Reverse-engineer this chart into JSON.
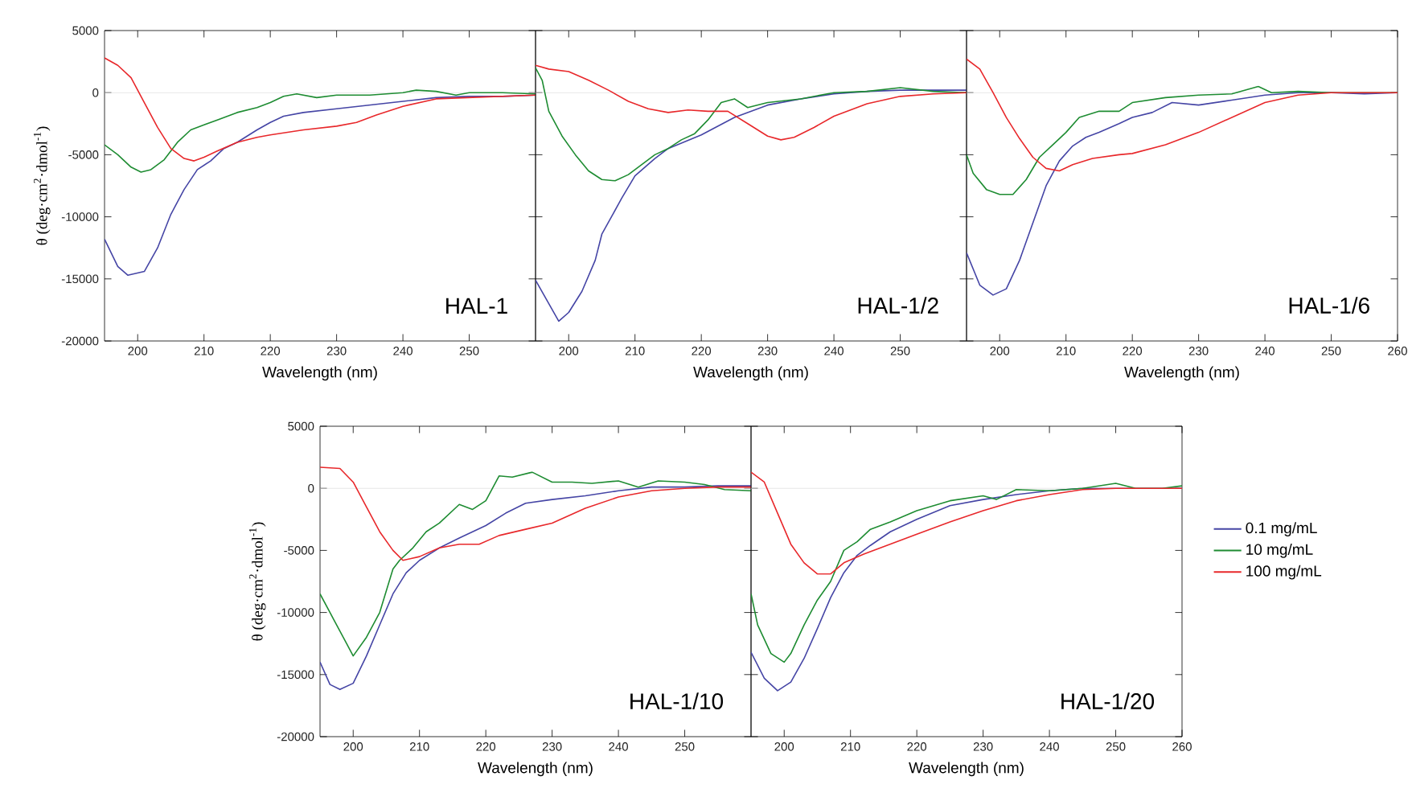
{
  "chart_data": [
    {
      "type": "line",
      "xlabel": "Wavelength (nm)",
      "ylabel": "θ (deg·cm$^{2}$·dmol$^{-1}$)",
      "annotations": [
        "HAL-1"
      ],
      "xlim": [
        195,
        260
      ],
      "xticks": [
        200,
        210,
        220,
        230,
        240,
        250
      ],
      "ylim": [
        -20000,
        5000
      ],
      "yticks": [
        -20000,
        -15000,
        -10000,
        -5000,
        0,
        5000
      ],
      "ref_lines": [
        {
          "axis": "y",
          "value": 0,
          "color": "#dddddd"
        }
      ],
      "series": [
        {
          "color": "#4545a5",
          "x": [
            195,
            197,
            198.5,
            201,
            203,
            205,
            207,
            209,
            211,
            213,
            215,
            218,
            220,
            222,
            225,
            230,
            235,
            240,
            245,
            250,
            255,
            260
          ],
          "values": [
            -11800,
            -14000,
            -14700,
            -14400,
            -12500,
            -9800,
            -7800,
            -6200,
            -5500,
            -4500,
            -4000,
            -3000,
            -2400,
            -1900,
            -1600,
            -1300,
            -1000,
            -700,
            -400,
            -300,
            -300,
            -200
          ]
        },
        {
          "color": "#1e8c32",
          "x": [
            195,
            197,
            199,
            200.5,
            202,
            204,
            206,
            208,
            210,
            212,
            215,
            218,
            220,
            222,
            224,
            227,
            230,
            235,
            240,
            242,
            245,
            248,
            250,
            255,
            260
          ],
          "values": [
            -4200,
            -5000,
            -6000,
            -6400,
            -6200,
            -5400,
            -4000,
            -3000,
            -2600,
            -2200,
            -1600,
            -1200,
            -800,
            -300,
            -100,
            -400,
            -200,
            -200,
            0,
            200,
            100,
            -200,
            0,
            0,
            -100
          ]
        },
        {
          "color": "#e8282b",
          "x": [
            195,
            197,
            199,
            201,
            203,
            205,
            207,
            208.5,
            210,
            212,
            215,
            218,
            220,
            225,
            230,
            233,
            236,
            240,
            245,
            250,
            255,
            260
          ],
          "values": [
            2800,
            2200,
            1200,
            -800,
            -2800,
            -4500,
            -5300,
            -5500,
            -5200,
            -4700,
            -4000,
            -3600,
            -3400,
            -3000,
            -2700,
            -2400,
            -1800,
            -1100,
            -500,
            -400,
            -300,
            -200
          ]
        }
      ]
    },
    {
      "type": "line",
      "xlabel": "Wavelength (nm)",
      "annotations": [
        "HAL-1/2"
      ],
      "tick_labels": "x",
      "xlim": [
        195,
        260
      ],
      "xticks": [
        200,
        210,
        220,
        230,
        240,
        250
      ],
      "ylim": [
        -20000,
        5000
      ],
      "yticks": [
        -20000,
        -15000,
        -10000,
        -5000,
        0,
        5000
      ],
      "ref_lines": [
        {
          "axis": "y",
          "value": 0,
          "color": "#dddddd"
        }
      ],
      "series": [
        {
          "color": "#4545a5",
          "x": [
            195,
            198.5,
            200,
            202,
            204,
            205,
            208,
            210,
            213,
            215,
            220,
            225,
            230,
            235,
            240,
            245,
            250,
            255,
            260
          ],
          "values": [
            -15100,
            -18400,
            -17700,
            -16000,
            -13500,
            -11400,
            -8500,
            -6700,
            -5300,
            -4500,
            -3400,
            -2000,
            -1000,
            -500,
            -100,
            100,
            200,
            200,
            200
          ]
        },
        {
          "color": "#1e8c32",
          "x": [
            195,
            196,
            197,
            199,
            201,
            203,
            205,
            207,
            209,
            211,
            213,
            215,
            217,
            219,
            221,
            223,
            225,
            227,
            230,
            235,
            240,
            245,
            250,
            255,
            260
          ],
          "values": [
            2000,
            1000,
            -1500,
            -3500,
            -5000,
            -6300,
            -7000,
            -7100,
            -6600,
            -5800,
            -5000,
            -4500,
            -3800,
            -3300,
            -2200,
            -800,
            -500,
            -1200,
            -800,
            -500,
            0,
            100,
            400,
            100,
            0
          ]
        },
        {
          "color": "#e8282b",
          "x": [
            195,
            197,
            200,
            203,
            206,
            209,
            212,
            215,
            218,
            221,
            224,
            227,
            230,
            232,
            234,
            237,
            240,
            245,
            250,
            255,
            260
          ],
          "values": [
            2200,
            1900,
            1700,
            1000,
            200,
            -700,
            -1300,
            -1600,
            -1400,
            -1500,
            -1500,
            -2500,
            -3500,
            -3800,
            -3600,
            -2800,
            -1900,
            -900,
            -300,
            -100,
            0
          ]
        }
      ]
    },
    {
      "type": "line",
      "xlabel": "Wavelength (nm)",
      "annotations": [
        "HAL-1/6"
      ],
      "tick_labels": "x",
      "xlim": [
        195,
        260
      ],
      "xticks": [
        200,
        210,
        220,
        230,
        240,
        250,
        260
      ],
      "ylim": [
        -20000,
        5000
      ],
      "yticks": [
        -20000,
        -15000,
        -10000,
        -5000,
        0,
        5000
      ],
      "ref_lines": [
        {
          "axis": "y",
          "value": 0,
          "color": "#dddddd"
        }
      ],
      "series": [
        {
          "color": "#4545a5",
          "x": [
            195,
            197,
            199,
            201,
            203,
            205,
            207,
            209,
            211,
            213,
            215,
            218,
            220,
            223,
            226,
            230,
            235,
            240,
            245,
            250,
            255,
            260
          ],
          "values": [
            -12900,
            -15500,
            -16300,
            -15800,
            -13500,
            -10500,
            -7500,
            -5500,
            -4300,
            -3600,
            -3200,
            -2500,
            -2000,
            -1600,
            -800,
            -1000,
            -600,
            -200,
            0,
            0,
            -100,
            0
          ]
        },
        {
          "color": "#1e8c32",
          "x": [
            195,
            196,
            198,
            200,
            202,
            204,
            206,
            208,
            210,
            212,
            215,
            218,
            220,
            225,
            230,
            235,
            239,
            241,
            245,
            250,
            255,
            260
          ],
          "values": [
            -5000,
            -6500,
            -7800,
            -8200,
            -8200,
            -7000,
            -5200,
            -4200,
            -3200,
            -2000,
            -1500,
            -1500,
            -800,
            -400,
            -200,
            -100,
            500,
            0,
            100,
            0,
            0,
            0
          ]
        },
        {
          "color": "#e8282b",
          "x": [
            195,
            197,
            199,
            201,
            203,
            205,
            207,
            209,
            211,
            214,
            218,
            220,
            225,
            230,
            235,
            240,
            245,
            250,
            255,
            260
          ],
          "values": [
            2700,
            1900,
            0,
            -2000,
            -3700,
            -5200,
            -6100,
            -6300,
            -5800,
            -5300,
            -5000,
            -4900,
            -4200,
            -3200,
            -2000,
            -800,
            -200,
            0,
            0,
            0
          ]
        }
      ]
    },
    {
      "type": "line",
      "xlabel": "Wavelength (nm)",
      "ylabel": "θ (deg·cm$^{2}$·dmol$^{-1}$)",
      "annotations": [
        "HAL-1/10"
      ],
      "xlim": [
        195,
        260
      ],
      "xticks": [
        200,
        210,
        220,
        230,
        240,
        250
      ],
      "ylim": [
        -20000,
        5000
      ],
      "yticks": [
        -20000,
        -15000,
        -10000,
        -5000,
        0,
        5000
      ],
      "ref_lines": [
        {
          "axis": "y",
          "value": 0,
          "color": "#dddddd"
        }
      ],
      "series": [
        {
          "color": "#4545a5",
          "x": [
            195,
            196.5,
            198,
            200,
            202,
            204,
            206,
            208,
            210,
            213,
            216,
            220,
            223,
            226,
            230,
            235,
            240,
            245,
            250,
            255,
            260
          ],
          "values": [
            -14000,
            -15800,
            -16200,
            -15700,
            -13500,
            -11000,
            -8500,
            -6800,
            -5800,
            -4800,
            -4000,
            -3000,
            -2000,
            -1200,
            -900,
            -600,
            -200,
            100,
            100,
            200,
            200
          ]
        },
        {
          "color": "#1e8c32",
          "x": [
            195,
            197,
            199,
            200,
            202,
            204,
            206,
            207,
            209,
            211,
            213,
            216,
            218,
            220,
            222,
            224,
            227,
            230,
            233,
            236,
            240,
            243,
            246,
            250,
            253,
            256,
            260
          ],
          "values": [
            -8500,
            -10500,
            -12500,
            -13500,
            -12000,
            -10000,
            -6500,
            -5800,
            -4800,
            -3500,
            -2800,
            -1300,
            -1700,
            -1000,
            1000,
            900,
            1300,
            500,
            500,
            400,
            600,
            100,
            600,
            500,
            300,
            -100,
            -200
          ]
        },
        {
          "color": "#e8282b",
          "x": [
            195,
            198,
            200,
            202,
            204,
            206,
            207.5,
            210,
            213,
            216,
            219,
            222,
            226,
            230,
            235,
            240,
            245,
            250,
            255,
            260
          ],
          "values": [
            1700,
            1600,
            500,
            -1500,
            -3500,
            -5000,
            -5800,
            -5500,
            -4800,
            -4500,
            -4500,
            -3800,
            -3300,
            -2800,
            -1600,
            -700,
            -200,
            0,
            100,
            100
          ]
        }
      ]
    },
    {
      "type": "line",
      "xlabel": "Wavelength (nm)",
      "annotations": [
        "HAL-1/20"
      ],
      "tick_labels": "x",
      "legend": "right",
      "xlim": [
        195,
        260
      ],
      "xticks": [
        200,
        210,
        220,
        230,
        240,
        250,
        260
      ],
      "ylim": [
        -20000,
        5000
      ],
      "yticks": [
        -20000,
        -15000,
        -10000,
        -5000,
        0,
        5000
      ],
      "ref_lines": [
        {
          "axis": "y",
          "value": 0,
          "color": "#dddddd"
        }
      ],
      "series": [
        {
          "name": "0.1 mg/mL",
          "color": "#4545a5",
          "x": [
            195,
            197,
            199,
            201,
            203,
            205,
            207,
            209,
            211,
            213,
            216,
            220,
            225,
            230,
            235,
            240,
            245,
            250,
            260
          ],
          "values": [
            -13200,
            -15300,
            -16300,
            -15600,
            -13700,
            -11300,
            -8800,
            -6800,
            -5400,
            -4600,
            -3500,
            -2500,
            -1400,
            -900,
            -500,
            -200,
            0,
            0,
            0
          ]
        },
        {
          "name": "10 mg/mL",
          "color": "#1e8c32",
          "x": [
            195,
            196,
            198,
            200,
            201,
            203,
            205,
            207,
            209,
            211,
            213,
            216,
            220,
            225,
            230,
            232,
            235,
            240,
            245,
            250,
            253,
            257,
            260
          ],
          "values": [
            -8500,
            -11000,
            -13300,
            -14000,
            -13300,
            -11000,
            -9000,
            -7500,
            -5000,
            -4300,
            -3300,
            -2700,
            -1800,
            -1000,
            -600,
            -900,
            -100,
            -200,
            0,
            400,
            0,
            0,
            200
          ]
        },
        {
          "name": "100 mg/mL",
          "color": "#e8282b",
          "x": [
            195,
            197,
            199,
            201,
            203,
            205,
            207,
            209,
            212,
            216,
            220,
            225,
            230,
            235,
            240,
            245,
            250,
            260
          ],
          "values": [
            1300,
            500,
            -2000,
            -4500,
            -6000,
            -6900,
            -6900,
            -6000,
            -5300,
            -4500,
            -3700,
            -2700,
            -1800,
            -1000,
            -500,
            -100,
            0,
            0
          ]
        }
      ]
    }
  ]
}
